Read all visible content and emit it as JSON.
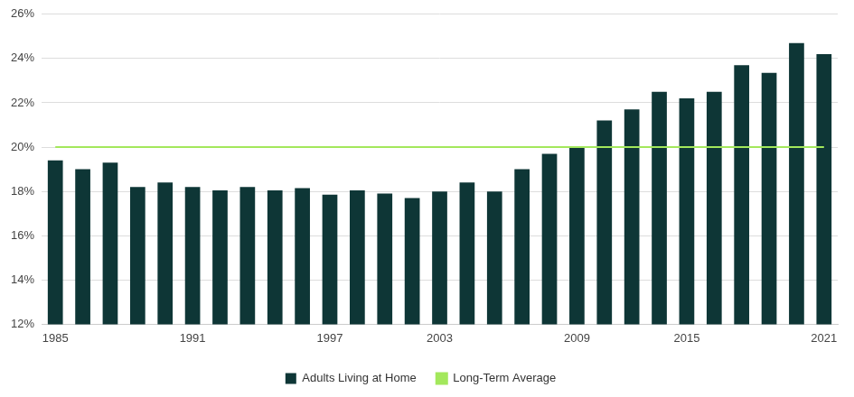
{
  "chart_data": {
    "type": "bar",
    "categories": [
      "1985",
      null,
      null,
      null,
      null,
      "1991",
      null,
      null,
      null,
      null,
      "1997",
      null,
      null,
      null,
      "2003",
      null,
      null,
      null,
      null,
      "2009",
      null,
      null,
      null,
      "2015",
      null,
      null,
      null,
      null,
      "2021"
    ],
    "series": [
      {
        "name": "Adults Living at Home",
        "type": "bar",
        "color": "#0e3636",
        "values": [
          19.4,
          19.0,
          19.3,
          18.2,
          18.4,
          18.2,
          18.05,
          18.2,
          18.05,
          18.15,
          17.85,
          18.05,
          17.9,
          17.7,
          18.0,
          18.4,
          18.0,
          19.0,
          19.7,
          20.0,
          21.2,
          21.7,
          22.5,
          22.2,
          22.5,
          23.7,
          23.35,
          24.7,
          24.2
        ]
      },
      {
        "name": "Long-Term Average",
        "type": "line",
        "color": "#a3e85c",
        "values": [
          20,
          20,
          20,
          20,
          20,
          20,
          20,
          20,
          20,
          20,
          20,
          20,
          20,
          20,
          20,
          20,
          20,
          20,
          20,
          20,
          20,
          20,
          20,
          20,
          20,
          20,
          20,
          20,
          20
        ]
      }
    ],
    "ylim": [
      12,
      26
    ],
    "yticks": [
      {
        "value": 12,
        "label": "12%"
      },
      {
        "value": 14,
        "label": "14%"
      },
      {
        "value": 16,
        "label": "16%"
      },
      {
        "value": 18,
        "label": "18%"
      },
      {
        "value": 20,
        "label": "20%"
      },
      {
        "value": 22,
        "label": "22%"
      },
      {
        "value": 24,
        "label": "24%"
      },
      {
        "value": 26,
        "label": "26%"
      }
    ],
    "grid": true,
    "legend": "bottom"
  }
}
